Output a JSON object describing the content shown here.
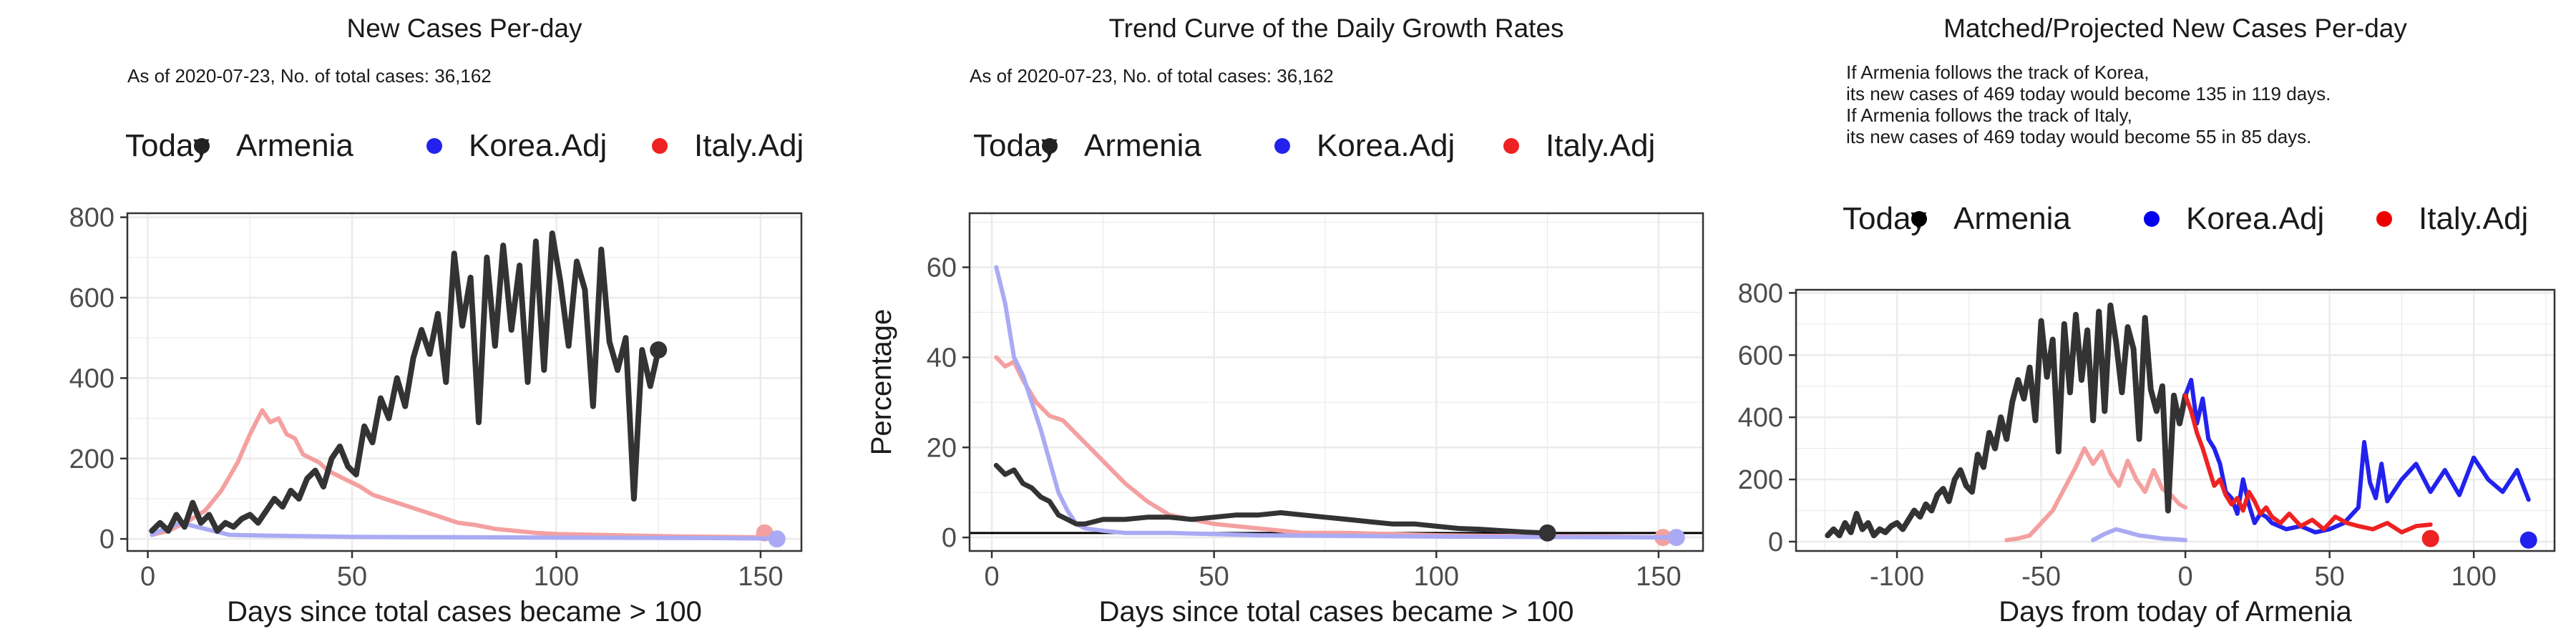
{
  "chart_data": [
    {
      "type": "line",
      "title": "New Cases Per-day",
      "subtitle": [
        "As of 2020-07-23, No. of total cases: 36,162"
      ],
      "legend": {
        "title": "Today",
        "entries": [
          "Armenia",
          "Korea.Adj",
          "Italy.Adj"
        ],
        "colors": [
          "#222222",
          "#2222ee",
          "#ee2222"
        ],
        "position": "top"
      },
      "xlabel": "Days since total cases became > 100",
      "ylabel": "",
      "xlim": [
        -5,
        160
      ],
      "ylim": [
        -30,
        810
      ],
      "xticks": [
        0,
        50,
        100,
        150
      ],
      "yticks": [
        0,
        200,
        400,
        600,
        800
      ],
      "grid": true,
      "series": [
        {
          "name": "Italy.Adj",
          "color": "#f4a0a0",
          "width": 6,
          "x": [
            1,
            5,
            10,
            14,
            18,
            22,
            25,
            28,
            30,
            32,
            34,
            36,
            38,
            40,
            42,
            44,
            46,
            48,
            50,
            52,
            55,
            58,
            61,
            64,
            67,
            70,
            73,
            76,
            80,
            85,
            90,
            95,
            100,
            110,
            120,
            130,
            140,
            150
          ],
          "y": [
            10,
            20,
            45,
            70,
            120,
            190,
            260,
            320,
            290,
            300,
            260,
            250,
            210,
            200,
            190,
            170,
            160,
            150,
            140,
            130,
            110,
            100,
            90,
            80,
            70,
            60,
            50,
            40,
            35,
            25,
            20,
            15,
            12,
            10,
            8,
            6,
            5,
            4
          ],
          "marker": {
            "x": 151,
            "y": 15
          }
        },
        {
          "name": "Korea.Adj",
          "color": "#aaaaf4",
          "width": 6,
          "x": [
            1,
            4,
            8,
            12,
            16,
            20,
            30,
            50,
            80,
            110,
            140,
            153
          ],
          "y": [
            10,
            25,
            40,
            30,
            20,
            10,
            8,
            5,
            4,
            3,
            2,
            1
          ],
          "marker": {
            "x": 154,
            "y": 0
          }
        },
        {
          "name": "Armenia",
          "color": "#333333",
          "width": 8,
          "x": [
            1,
            3,
            5,
            7,
            9,
            11,
            13,
            15,
            17,
            19,
            21,
            23,
            25,
            27,
            29,
            31,
            33,
            35,
            37,
            39,
            41,
            43,
            45,
            47,
            49,
            51,
            53,
            55,
            57,
            59,
            61,
            63,
            65,
            67,
            69,
            71,
            73,
            75,
            77,
            79,
            81,
            83,
            85,
            87,
            89,
            91,
            93,
            95,
            97,
            99,
            101,
            103,
            105,
            107,
            109,
            111,
            113,
            115,
            117,
            119,
            121,
            123,
            125
          ],
          "y": [
            20,
            40,
            20,
            60,
            30,
            90,
            40,
            60,
            20,
            40,
            30,
            50,
            60,
            40,
            70,
            100,
            80,
            120,
            100,
            150,
            170,
            130,
            200,
            230,
            180,
            160,
            280,
            240,
            350,
            300,
            400,
            330,
            450,
            520,
            460,
            560,
            390,
            710,
            530,
            650,
            290,
            700,
            480,
            730,
            520,
            680,
            390,
            740,
            420,
            760,
            640,
            480,
            690,
            620,
            330,
            720,
            490,
            420,
            500,
            100,
            470,
            380,
            470
          ],
          "marker": {
            "x": 125,
            "y": 470
          }
        }
      ]
    },
    {
      "type": "line",
      "title": "Trend Curve of the Daily Growth Rates",
      "subtitle": [
        "As of 2020-07-23, No. of total cases: 36,162"
      ],
      "legend": {
        "title": "Today",
        "entries": [
          "Armenia",
          "Korea.Adj",
          "Italy.Adj"
        ],
        "colors": [
          "#222222",
          "#2222ee",
          "#ee2222"
        ],
        "position": "top"
      },
      "xlabel": "Days since total cases became > 100",
      "ylabel": "Percentage",
      "xlim": [
        -5,
        160
      ],
      "ylim": [
        -3,
        72
      ],
      "xticks": [
        0,
        50,
        100,
        150
      ],
      "yticks": [
        0,
        20,
        40,
        60
      ],
      "grid": true,
      "hline": 1,
      "series": [
        {
          "name": "Italy.Adj",
          "color": "#f4a0a0",
          "width": 6,
          "x": [
            1,
            3,
            5,
            7,
            10,
            13,
            16,
            20,
            25,
            30,
            35,
            40,
            45,
            50,
            60,
            70,
            80,
            100,
            120,
            140,
            151
          ],
          "y": [
            40,
            38,
            39,
            35,
            30,
            27,
            26,
            22,
            17,
            12,
            8,
            5,
            4,
            3,
            2,
            1,
            1,
            0.5,
            0.3,
            0.2,
            0
          ],
          "marker": {
            "x": 151,
            "y": 0
          }
        },
        {
          "name": "Korea.Adj",
          "color": "#aaaaf4",
          "width": 6,
          "x": [
            1,
            3,
            5,
            7,
            9,
            11,
            13,
            15,
            17,
            19,
            21,
            25,
            30,
            40,
            60,
            100,
            154
          ],
          "y": [
            60,
            52,
            40,
            36,
            30,
            24,
            17,
            10,
            6,
            3,
            2,
            1.5,
            1,
            1,
            0.5,
            0.2,
            0
          ],
          "marker": {
            "x": 154,
            "y": 0
          }
        },
        {
          "name": "Armenia",
          "color": "#333333",
          "width": 7,
          "x": [
            1,
            3,
            5,
            7,
            9,
            11,
            13,
            15,
            17,
            19,
            21,
            25,
            30,
            35,
            40,
            45,
            50,
            55,
            60,
            65,
            70,
            75,
            80,
            85,
            90,
            95,
            100,
            105,
            110,
            115,
            120,
            125
          ],
          "y": [
            16,
            14,
            15,
            12,
            11,
            9,
            8,
            5,
            4,
            3,
            3,
            4,
            4,
            4.5,
            4.5,
            4,
            4.5,
            5,
            5,
            5.5,
            5,
            4.5,
            4,
            3.5,
            3,
            3,
            2.5,
            2,
            1.8,
            1.5,
            1.2,
            1
          ],
          "marker": {
            "x": 125,
            "y": 1
          }
        }
      ]
    },
    {
      "type": "line",
      "title": "Matched/Projected New Cases Per-day",
      "subtitle": [
        "If Armenia follows the track of Korea,",
        "its new cases of 469 today would become 135 in 119 days.",
        "If Armenia follows the track of Italy,",
        "its new cases of 469 today would become 55 in 85 days."
      ],
      "legend": {
        "title": "Today",
        "entries": [
          "Armenia",
          "Korea.Adj",
          "Italy.Adj"
        ],
        "colors": [
          "#000000",
          "#0000ee",
          "#ee0000"
        ],
        "position": "top"
      },
      "xlabel": "Days from today of Armenia",
      "ylabel": "",
      "xlim": [
        -135,
        128
      ],
      "ylim": [
        -30,
        810
      ],
      "xticks": [
        -100,
        -50,
        0,
        50,
        100
      ],
      "yticks": [
        0,
        200,
        400,
        600,
        800
      ],
      "grid": true,
      "series": [
        {
          "name": "Italy.Adj past",
          "color": "#f4a0a0",
          "width": 6,
          "x": [
            -62,
            -58,
            -54,
            -50,
            -46,
            -42,
            -38,
            -35,
            -32,
            -29,
            -26,
            -23,
            -20,
            -17,
            -14,
            -11,
            -8,
            -5,
            -2,
            0
          ],
          "y": [
            5,
            10,
            20,
            60,
            100,
            170,
            240,
            300,
            250,
            290,
            220,
            180,
            260,
            200,
            160,
            230,
            170,
            150,
            120,
            110
          ],
          "marker": null
        },
        {
          "name": "Korea.Adj past",
          "color": "#aaaaf4",
          "width": 6,
          "x": [
            -32,
            -28,
            -24,
            -20,
            -16,
            -12,
            -8,
            -4,
            0
          ],
          "y": [
            5,
            25,
            40,
            30,
            20,
            15,
            10,
            8,
            5
          ],
          "marker": null
        },
        {
          "name": "Armenia",
          "color": "#333333",
          "width": 8,
          "x": [
            -124,
            -122,
            -120,
            -118,
            -116,
            -114,
            -112,
            -110,
            -108,
            -106,
            -104,
            -102,
            -100,
            -98,
            -96,
            -94,
            -92,
            -90,
            -88,
            -86,
            -84,
            -82,
            -80,
            -78,
            -76,
            -74,
            -72,
            -70,
            -68,
            -66,
            -64,
            -62,
            -60,
            -58,
            -56,
            -54,
            -52,
            -50,
            -48,
            -46,
            -44,
            -42,
            -40,
            -38,
            -36,
            -34,
            -32,
            -30,
            -28,
            -26,
            -24,
            -22,
            -20,
            -18,
            -16,
            -14,
            -12,
            -10,
            -8,
            -6,
            -4,
            -2,
            0
          ],
          "y": [
            20,
            40,
            20,
            60,
            30,
            90,
            40,
            60,
            20,
            40,
            30,
            50,
            60,
            40,
            70,
            100,
            80,
            120,
            100,
            150,
            170,
            130,
            200,
            230,
            180,
            160,
            280,
            240,
            350,
            300,
            400,
            330,
            450,
            520,
            460,
            560,
            390,
            710,
            530,
            650,
            290,
            700,
            480,
            730,
            520,
            680,
            390,
            740,
            420,
            760,
            640,
            480,
            690,
            620,
            330,
            720,
            490,
            420,
            500,
            100,
            470,
            380,
            470
          ],
          "marker": null
        },
        {
          "name": "Korea.Adj",
          "color": "#2222ee",
          "width": 6,
          "x": [
            0,
            2,
            4,
            6,
            8,
            10,
            12,
            14,
            16,
            18,
            20,
            22,
            24,
            26,
            28,
            30,
            35,
            40,
            45,
            50,
            55,
            60,
            62,
            64,
            66,
            68,
            70,
            75,
            80,
            85,
            90,
            95,
            100,
            105,
            110,
            115,
            119
          ],
          "y": [
            470,
            520,
            380,
            460,
            330,
            300,
            250,
            160,
            140,
            90,
            200,
            120,
            60,
            90,
            80,
            60,
            40,
            50,
            30,
            40,
            60,
            110,
            320,
            190,
            140,
            250,
            130,
            200,
            250,
            160,
            230,
            150,
            270,
            200,
            160,
            230,
            135
          ],
          "marker": {
            "x": 119,
            "y": 5
          }
        },
        {
          "name": "Italy.Adj",
          "color": "#ee2222",
          "width": 6,
          "x": [
            0,
            2,
            4,
            6,
            8,
            10,
            12,
            14,
            16,
            18,
            20,
            22,
            24,
            26,
            28,
            30,
            33,
            36,
            40,
            44,
            48,
            52,
            56,
            60,
            65,
            70,
            75,
            80,
            85
          ],
          "y": [
            470,
            420,
            350,
            300,
            240,
            180,
            200,
            150,
            120,
            140,
            100,
            160,
            130,
            90,
            110,
            80,
            60,
            90,
            50,
            70,
            40,
            80,
            60,
            50,
            40,
            60,
            30,
            50,
            55
          ],
          "marker": {
            "x": 85,
            "y": 10
          }
        }
      ]
    }
  ]
}
